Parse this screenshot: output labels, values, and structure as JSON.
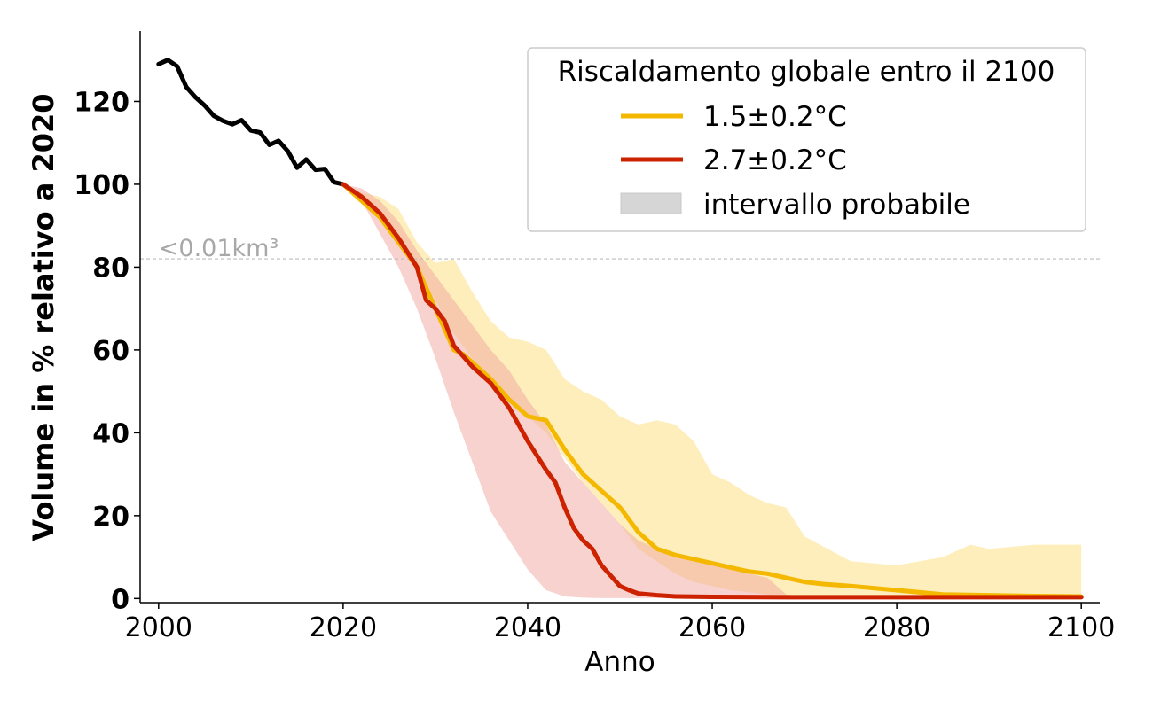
{
  "chart_data": {
    "type": "line",
    "xlabel": "Anno",
    "ylabel": "Volume in % relativo a 2020",
    "xlim": [
      1998,
      2102
    ],
    "ylim": [
      -1,
      137
    ],
    "xticks": [
      2000,
      2020,
      2040,
      2060,
      2080,
      2100
    ],
    "yticks": [
      0,
      20,
      40,
      60,
      80,
      100,
      120
    ],
    "grid": false,
    "legend": {
      "title": "Riscaldamento globale entro il 2100",
      "placement": "top-right",
      "entries": [
        "1.5±0.2°C",
        "2.7±0.2°C",
        "intervallo probabile"
      ]
    },
    "threshold": {
      "y": 82,
      "label": "<0.01km³",
      "color": "#bbbbbb"
    },
    "colors": {
      "historical": "#000000",
      "scenario_1_5": "#f5b800",
      "scenario_2_7": "#cc2200",
      "band_1_5": "#fde8a6",
      "band_2_7": "#f0a69e",
      "legend_band": "#d6d6d6"
    },
    "historical": {
      "x": [
        2000,
        2001,
        2002,
        2003,
        2004,
        2005,
        2006,
        2007,
        2008,
        2009,
        2010,
        2011,
        2012,
        2013,
        2014,
        2015,
        2016,
        2017,
        2018,
        2019,
        2020
      ],
      "y": [
        129,
        130,
        128.5,
        123.5,
        121,
        119,
        116.5,
        115.3,
        114.5,
        115.5,
        113,
        112.5,
        109.5,
        110.5,
        108,
        104,
        106,
        103.5,
        103.7,
        100.5,
        100
      ]
    },
    "series": [
      {
        "name": "1.5±0.2°C",
        "x": [
          2020,
          2022,
          2024,
          2026,
          2028,
          2030,
          2031,
          2032,
          2033,
          2034,
          2036,
          2038,
          2040,
          2042,
          2044,
          2046,
          2048,
          2050,
          2052,
          2054,
          2056,
          2058,
          2060,
          2062,
          2064,
          2066,
          2068,
          2070,
          2072,
          2075,
          2080,
          2085,
          2090,
          2095,
          2100
        ],
        "y": [
          100,
          96,
          92,
          86,
          80,
          70,
          65,
          60,
          59,
          57,
          53,
          48,
          44,
          43,
          36,
          30,
          26,
          22,
          16,
          12,
          10.5,
          9.5,
          8.5,
          7.5,
          6.5,
          6,
          5,
          4,
          3.5,
          3,
          2,
          1,
          0.8,
          0.6,
          0.5
        ],
        "band_x": [
          2020,
          2022,
          2024,
          2026,
          2028,
          2030,
          2032,
          2034,
          2036,
          2038,
          2040,
          2042,
          2044,
          2046,
          2048,
          2050,
          2052,
          2054,
          2056,
          2058,
          2060,
          2062,
          2064,
          2066,
          2068,
          2070,
          2075,
          2080,
          2085,
          2088,
          2090,
          2095,
          2100
        ],
        "band_upper": [
          100,
          98,
          97,
          94,
          86,
          81,
          82,
          74,
          67,
          63,
          62,
          60,
          53,
          50,
          48,
          44,
          42,
          43,
          42,
          38,
          30,
          28,
          25,
          23,
          22,
          15,
          9,
          8,
          10,
          13,
          12,
          13,
          13
        ],
        "band_lower": [
          100,
          97,
          94,
          88,
          80,
          72,
          64,
          58,
          53,
          48,
          44,
          40,
          34,
          28,
          23,
          18,
          12,
          9,
          6,
          4,
          3,
          2,
          1.5,
          1,
          0.7,
          0.5,
          0.3,
          0.2,
          0.2,
          0.1,
          0.1,
          0.1,
          0.1
        ]
      },
      {
        "name": "2.7±0.2°C",
        "x": [
          2020,
          2022,
          2024,
          2026,
          2028,
          2029,
          2030,
          2031,
          2032,
          2034,
          2036,
          2038,
          2040,
          2042,
          2043,
          2044,
          2045,
          2046,
          2047,
          2048,
          2050,
          2051,
          2052,
          2054,
          2056,
          2060,
          2070,
          2080,
          2090,
          2100
        ],
        "y": [
          100,
          97,
          93,
          87,
          80,
          72,
          70,
          67,
          61,
          56,
          52,
          46,
          38,
          31,
          28,
          22,
          17,
          14,
          12,
          8,
          3,
          2,
          1.2,
          0.8,
          0.5,
          0.4,
          0.3,
          0.3,
          0.3,
          0.3
        ],
        "band_x": [
          2020,
          2022,
          2024,
          2026,
          2028,
          2030,
          2032,
          2034,
          2036,
          2038,
          2040,
          2042,
          2044,
          2046,
          2048,
          2050,
          2052,
          2054,
          2056,
          2058,
          2060,
          2062,
          2064,
          2066,
          2068,
          2070,
          2080,
          2090,
          2100
        ],
        "band_upper": [
          100,
          99,
          96,
          91,
          84,
          78,
          72,
          66,
          60,
          55,
          48,
          42,
          33,
          28,
          23,
          18,
          14,
          12,
          10,
          9,
          8,
          7.5,
          6,
          5,
          1,
          0.5,
          0.3,
          0.3,
          0.3
        ],
        "band_lower": [
          100,
          96,
          88,
          80,
          70,
          58,
          45,
          33,
          21,
          14,
          7,
          2,
          0.5,
          0.2,
          0.1,
          0.1,
          0.1,
          0.1,
          0.1,
          0.1,
          0.1,
          0.1,
          0.1,
          0.1,
          0.1,
          0.1,
          0.1,
          0.1,
          0.1
        ]
      }
    ]
  }
}
